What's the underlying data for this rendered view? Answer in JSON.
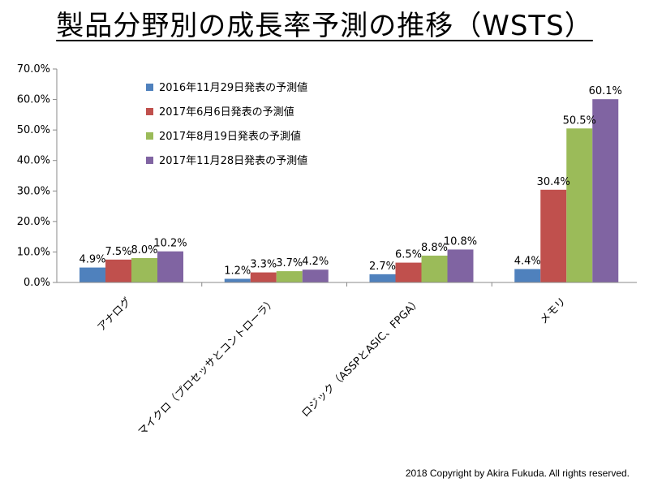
{
  "title": "製品分野別の成長率予測の推移（WSTS）",
  "copyright": "2018 Copyright by Akira Fukuda. All rights reserved.",
  "chart_data": {
    "type": "bar",
    "categories": [
      "アナログ",
      "マイクロ（プロセッサとコントローラ）",
      "ロジック（ASSPとASIC、FPGA）",
      "メモリ"
    ],
    "series": [
      {
        "name": "2016年11月29日発表の予測値",
        "color": "#4f81bd",
        "values": [
          4.9,
          1.2,
          2.7,
          4.4
        ]
      },
      {
        "name": "2017年6月6日発表の予測値",
        "color": "#c0504d",
        "values": [
          7.5,
          3.3,
          6.5,
          30.4
        ]
      },
      {
        "name": "2017年8月19日発表の予測値",
        "color": "#9bbb59",
        "values": [
          8.0,
          3.7,
          8.8,
          50.5
        ]
      },
      {
        "name": "2017年11月28日発表の予測値",
        "color": "#8064a2",
        "values": [
          10.2,
          4.2,
          10.8,
          60.1
        ]
      }
    ],
    "data_label_format": "percent_1dp",
    "yticks": [
      "0.0%",
      "10.0%",
      "20.0%",
      "30.0%",
      "40.0%",
      "50.0%",
      "60.0%",
      "70.0%"
    ],
    "ylim": [
      0,
      70
    ],
    "xlabel": "",
    "ylabel": "",
    "grid": false,
    "legend_position": "top-left"
  }
}
